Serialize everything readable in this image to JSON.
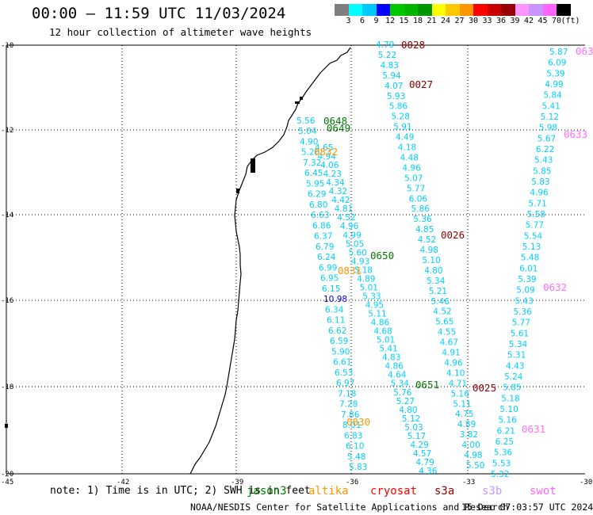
{
  "header": {
    "title": "00:00 — 11:59 UTC 11/03/2024",
    "subtitle": "12 hour collection of altimeter wave heights"
  },
  "legend": {
    "colors": [
      "#7f7f7f",
      "#00ffff",
      "#00c8ff",
      "#0000ff",
      "#00c800",
      "#00b400",
      "#009600",
      "#ffff00",
      "#ffc800",
      "#ff9600",
      "#ff0000",
      "#c80000",
      "#960000",
      "#ff96ff",
      "#c896ff",
      "#ff64ff",
      "#000000"
    ],
    "labels": [
      "3",
      "6",
      "9",
      "12",
      "15",
      "18",
      "21",
      "24",
      "27",
      "30",
      "33",
      "36",
      "39",
      "42",
      "45",
      "70",
      "(ft)"
    ]
  },
  "axes": {
    "lat_labels": [
      "-10",
      "-12",
      "-14",
      "-16",
      "-18",
      "-20"
    ],
    "lon_labels": [
      "-45",
      "-42",
      "-39",
      "-36",
      "-33",
      "-30"
    ]
  },
  "tracks": [
    {
      "label_color": "#00e0ff",
      "labels": [
        {
          "text": "0648",
          "color": "#007a00"
        },
        {
          "text": "0649",
          "color": "#007a00"
        },
        {
          "text": "0832",
          "color": "#ff9600"
        },
        {
          "text": "0650",
          "color": "#007a00"
        },
        {
          "text": "0831",
          "color": "#ff9600"
        },
        {
          "text": "0651",
          "color": "#007a00"
        },
        {
          "text": "0830",
          "color": "#ff9600"
        },
        {
          "text": "0028",
          "color": "#8b0000"
        },
        {
          "text": "0027",
          "color": "#8b0000"
        },
        {
          "text": "0026",
          "color": "#8b0000"
        },
        {
          "text": "0025",
          "color": "#8b0000"
        },
        {
          "text": "0633",
          "color": "#ff6eff"
        },
        {
          "text": "0632",
          "color": "#ff6eff"
        },
        {
          "text": "0631",
          "color": "#ff6eff"
        },
        {
          "text": "063",
          "color": "#ff6eff"
        }
      ]
    }
  ],
  "wave_values": {
    "t1": [
      "5.56",
      "5.04",
      "4.90",
      "5.26",
      "7.32",
      "6.45",
      "5.95",
      "6.29",
      "6.80",
      "6.63",
      "6.86",
      "6.37",
      "6.79",
      "6.24",
      "6.99",
      "6.95",
      "6.15",
      "10.98",
      "6.34",
      "6.11",
      "6.62",
      "6.59",
      "5.90",
      "6.61",
      "6.53",
      "6.97",
      "7.18",
      "7.28",
      "7.86",
      "8.01",
      "6.83",
      "6.10",
      "5.48",
      "5.83"
    ],
    "t2": [
      "4.65",
      "4.94",
      "4.06",
      "4.23",
      "4.34",
      "4.32",
      "4.42",
      "4.81",
      "4.52",
      "4.96",
      "4.99",
      "5.05",
      "5.60",
      "4.93",
      "5.18",
      "4.89",
      "5.01",
      "5.33",
      "4.95",
      "5.11",
      "4.86",
      "4.68",
      "5.01",
      "5.41",
      "4.83",
      "4.86",
      "4.64",
      "5.34",
      "5.76",
      "5.27",
      "4.80",
      "5.12",
      "5.03",
      "5.17",
      "4.29",
      "4.57",
      "4.79",
      "4.36"
    ],
    "t3": [
      "4.79",
      "5.22",
      "4.83",
      "5.94",
      "4.07",
      "5.93",
      "5.86",
      "5.28",
      "5.91",
      "4.49",
      "4.18",
      "4.48",
      "4.96",
      "5.07",
      "5.77",
      "6.06",
      "5.86",
      "5.36",
      "4.85",
      "4.52",
      "4.98",
      "5.10",
      "4.80",
      "5.34",
      "5.21",
      "5.46",
      "4.52",
      "5.65",
      "4.55",
      "4.67",
      "4.91",
      "4.96",
      "4.10",
      "4.71",
      "5.16",
      "5.11",
      "4.75",
      "4.89",
      "3.82",
      "4.00",
      "4.98",
      "5.50"
    ],
    "t4": [
      "5.87",
      "6.09",
      "5.39",
      "4.99",
      "5.84",
      "5.41",
      "5.12",
      "5.98",
      "5.67",
      "6.22",
      "5.43",
      "5.85",
      "5.83",
      "4.96",
      "5.71",
      "5.58",
      "5.77",
      "5.54",
      "5.13",
      "5.48",
      "6.01",
      "5.39",
      "5.09",
      "5.43",
      "5.36",
      "5.77",
      "5.61",
      "5.34",
      "5.31",
      "4.43",
      "5.24",
      "5.85",
      "5.18",
      "5.10",
      "5.16",
      "6.21",
      "6.25",
      "5.36",
      "5.53",
      "5.32"
    ]
  },
  "footer": {
    "note": "note: 1) Time is in UTC; 2) SWH is in feet",
    "satellites": [
      {
        "name": "jason3",
        "color": "#007a00"
      },
      {
        "name": "altika",
        "color": "#ff9600"
      },
      {
        "name": "cryosat",
        "color": "#ff0000"
      },
      {
        "name": "s3a",
        "color": "#8b0000"
      },
      {
        "name": "s3b",
        "color": "#c896ff"
      },
      {
        "name": "swot",
        "color": "#ff64ff"
      }
    ],
    "credit": "NOAA/NESDIS Center for Satellite Applications and Research",
    "timestamp": "15 Dec 07:03:57 UTC 2024"
  }
}
